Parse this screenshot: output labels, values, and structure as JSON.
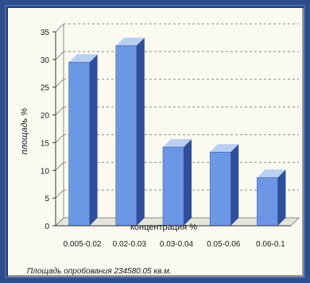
{
  "chart_data": {
    "type": "bar",
    "categories": [
      "0.005-0.02",
      "0.02-0.03",
      "0.03-0.04",
      "0.05-0.06",
      "0.06-0.1"
    ],
    "values": [
      29.5,
      32.5,
      14.2,
      13.3,
      8.7
    ],
    "xlabel": "концентрация %",
    "ylabel": "площадь %",
    "ylim": [
      0,
      35
    ],
    "yticks": [
      0,
      5,
      10,
      15,
      20,
      25,
      30,
      35
    ],
    "grid": true,
    "legend": "none",
    "colors": {
      "bar_front": "#6c97e4",
      "bar_side": "#2f4f9a",
      "bar_top": "#b9cff2",
      "grid": "#8a8a8a",
      "axis": "#333333"
    }
  },
  "footnote": "Площадь опробования 234580.05 кв.м."
}
